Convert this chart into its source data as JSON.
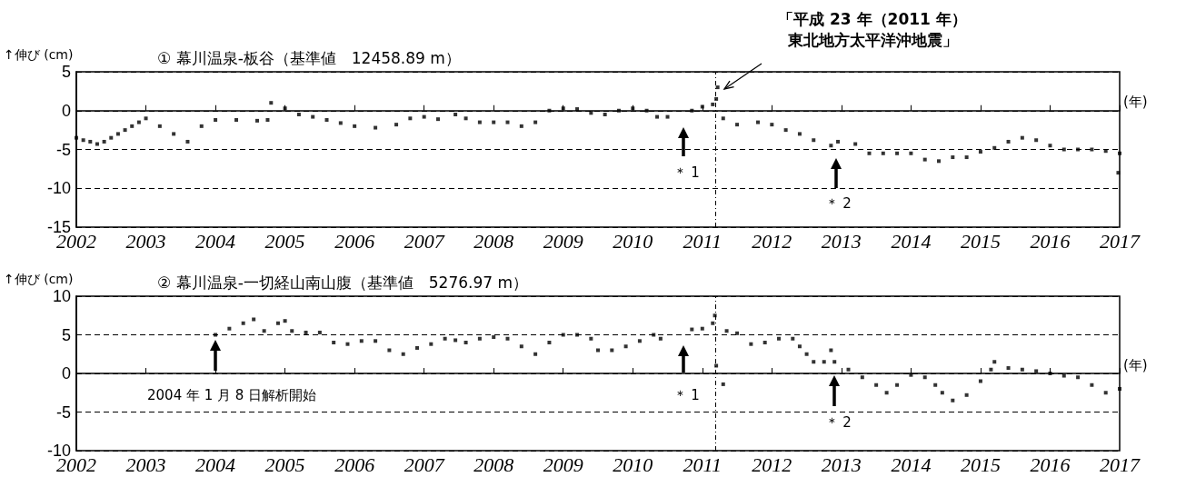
{
  "chart_data": [
    {
      "type": "scatter",
      "title": "① 幕川温泉-板谷（基準値　12458.89 m）",
      "ylabel": "↑伸び (cm)",
      "xlabel": "(年)",
      "x": [
        2002.0,
        2002.1,
        2002.2,
        2002.3,
        2002.4,
        2002.5,
        2002.6,
        2002.7,
        2002.8,
        2002.9,
        2003.0,
        2003.2,
        2003.4,
        2003.6,
        2003.8,
        2004.0,
        2004.3,
        2004.6,
        2004.75,
        2004.8,
        2005.0,
        2005.2,
        2005.4,
        2005.6,
        2005.8,
        2006.0,
        2006.3,
        2006.6,
        2006.8,
        2007.0,
        2007.2,
        2007.45,
        2007.6,
        2007.8,
        2008.0,
        2008.2,
        2008.4,
        2008.6,
        2008.8,
        2009.0,
        2009.2,
        2009.4,
        2009.6,
        2009.8,
        2010.0,
        2010.2,
        2010.35,
        2010.5,
        2010.85,
        2011.0,
        2011.15,
        2011.2,
        2011.22,
        2011.3,
        2011.5,
        2011.8,
        2012.0,
        2012.2,
        2012.4,
        2012.6,
        2012.85,
        2012.95,
        2013.2,
        2013.4,
        2013.6,
        2013.8,
        2014.0,
        2014.2,
        2014.4,
        2014.6,
        2014.8,
        2015.0,
        2015.2,
        2015.4,
        2015.6,
        2015.8,
        2016.0,
        2016.2,
        2016.4,
        2016.6,
        2016.8,
        2016.98,
        2017.0
      ],
      "values": [
        -3.5,
        -3.8,
        -4,
        -4.3,
        -4,
        -3.5,
        -3,
        -2.5,
        -2,
        -1.5,
        -1,
        -2,
        -3,
        -4,
        -2,
        -1.2,
        -1.2,
        -1.3,
        -1.2,
        1,
        0.3,
        -0.5,
        -0.8,
        -1.2,
        -1.6,
        -2,
        -2.2,
        -1.8,
        -1,
        -0.8,
        -1.1,
        -0.5,
        -1,
        -1.5,
        -1.5,
        -1.5,
        -2,
        -1.5,
        0,
        0.3,
        0.2,
        -0.3,
        -0.5,
        0,
        0.3,
        0,
        -0.8,
        -0.8,
        0,
        0.5,
        0.8,
        1.5,
        3,
        -1,
        -1.8,
        -1.5,
        -1.8,
        -2.5,
        -3,
        -3.8,
        -4.5,
        -4,
        -4.3,
        -5.5,
        -5.5,
        -5.5,
        -5.5,
        -6.3,
        -6.5,
        -6,
        -6,
        -5.3,
        -4.8,
        -4,
        -3.5,
        -3.8,
        -4.5,
        -5,
        -5,
        -5,
        -5.2,
        -8,
        -5.5
      ],
      "color": "#000000",
      "marker": "square",
      "xlim": [
        2002,
        2017
      ],
      "xticks": [
        2002,
        2003,
        2004,
        2005,
        2006,
        2007,
        2008,
        2009,
        2010,
        2011,
        2012,
        2013,
        2014,
        2015,
        2016,
        2017
      ],
      "ylim": [
        -15,
        5
      ],
      "yticks": [
        -15,
        -10,
        -5,
        0,
        5
      ],
      "grid": "y",
      "ref_lines": [
        {
          "axis": "x",
          "value": 2011.19,
          "line_style": "dashed"
        }
      ],
      "annotations": [
        "「平成 23 年（2011 年）東北地方太平洋沖地震」",
        "＊ 1",
        "＊ 2"
      ]
    },
    {
      "type": "scatter",
      "title": "② 幕川温泉-一切経山南山腹（基準値　5276.97 m）",
      "ylabel": "↑伸び (cm)",
      "xlabel": "(年)",
      "x": [
        2004.0,
        2004.2,
        2004.4,
        2004.55,
        2004.7,
        2004.9,
        2005.0,
        2005.1,
        2005.3,
        2005.5,
        2005.7,
        2005.9,
        2006.1,
        2006.3,
        2006.5,
        2006.7,
        2006.9,
        2007.1,
        2007.3,
        2007.45,
        2007.6,
        2007.8,
        2008.0,
        2008.2,
        2008.4,
        2008.6,
        2008.8,
        2009.0,
        2009.2,
        2009.4,
        2009.5,
        2009.7,
        2009.9,
        2010.1,
        2010.3,
        2010.4,
        2010.85,
        2011.0,
        2011.15,
        2011.18,
        2011.2,
        2011.3,
        2011.35,
        2011.5,
        2011.7,
        2011.9,
        2012.1,
        2012.3,
        2012.4,
        2012.5,
        2012.6,
        2012.75,
        2012.85,
        2012.9,
        2013.1,
        2013.3,
        2013.5,
        2013.65,
        2013.8,
        2014.0,
        2014.2,
        2014.35,
        2014.45,
        2014.6,
        2014.8,
        2015.0,
        2015.15,
        2015.2,
        2015.4,
        2015.6,
        2015.8,
        2016.0,
        2016.2,
        2016.4,
        2016.6,
        2016.8,
        2017.0
      ],
      "values": [
        5,
        5.8,
        6.5,
        7,
        5.5,
        6.5,
        6.8,
        5.5,
        5.3,
        5.3,
        4,
        3.8,
        4.2,
        4.2,
        3,
        2.5,
        3.3,
        3.8,
        4.5,
        4.3,
        4,
        4.5,
        4.7,
        4.5,
        3.5,
        2.5,
        4,
        5,
        5,
        4.5,
        3,
        3,
        3.5,
        4.2,
        5,
        4.5,
        5.7,
        5.8,
        6.5,
        7.5,
        1,
        -1.4,
        5.5,
        5.2,
        3.8,
        4,
        4.5,
        4.5,
        3.5,
        2.5,
        1.5,
        1.5,
        3,
        1.5,
        0.5,
        -0.5,
        -1.5,
        -2.5,
        -1.5,
        -0.2,
        -0.5,
        -1.5,
        -2.5,
        -3.5,
        -2.8,
        -1,
        0.5,
        1.5,
        0.7,
        0.5,
        0.3,
        0,
        -0.3,
        -0.5,
        -1.5,
        -2.5,
        -2
      ],
      "color": "#000000",
      "marker": "square",
      "xlim": [
        2002,
        2017
      ],
      "xticks": [
        2002,
        2003,
        2004,
        2005,
        2006,
        2007,
        2008,
        2009,
        2010,
        2011,
        2012,
        2013,
        2014,
        2015,
        2016,
        2017
      ],
      "ylim": [
        -10,
        10
      ],
      "yticks": [
        -10,
        -5,
        0,
        5,
        10
      ],
      "grid": "y",
      "ref_lines": [
        {
          "axis": "x",
          "value": 2011.19,
          "line_style": "dashed"
        }
      ],
      "annotations": [
        "2004 年 1 月 8 日解析開始",
        "＊ 1",
        "＊ 2"
      ]
    }
  ]
}
